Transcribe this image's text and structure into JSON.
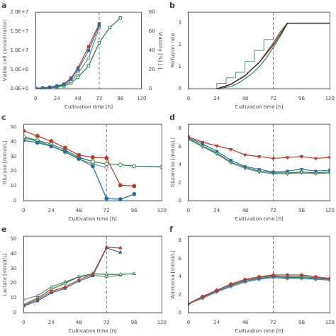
{
  "chart_data": [
    {
      "type": "line",
      "title": "a",
      "xlabel": "Cultivation time [h]",
      "ylabel": "Viable cell concentration",
      "y2label": "Viability [%] [-]",
      "xlim": [
        0,
        120
      ],
      "xticks": [
        0,
        24,
        48,
        72,
        96,
        120
      ],
      "ylim": [
        0,
        20000000.0
      ],
      "yticks": [
        {
          "value": 0,
          "label": "0.0E+0"
        },
        {
          "value": 5000000.0,
          "label": "5.0E+6"
        },
        {
          "value": 10000000.0,
          "label": "1.0E+7"
        },
        {
          "value": 15000000.0,
          "label": "1.5E+7"
        },
        {
          "value": 20000000.0,
          "label": "2.0E+7"
        }
      ],
      "y2lim": [
        0,
        80
      ],
      "y2ticks": [
        0,
        20,
        40,
        60,
        80
      ],
      "grid": false,
      "vline": {
        "x": 72,
        "color": "#777777",
        "line_style": "dashed"
      },
      "x": [
        0,
        8,
        16,
        24,
        32,
        40,
        48,
        60,
        72
      ],
      "series": [
        {
          "color": "#2471a3",
          "marker": "square",
          "values": [
            100000.0,
            200000.0,
            400000.0,
            700000.0,
            1200000.0,
            2500000.0,
            5000000.0,
            10000000.0,
            16500000.0
          ]
        },
        {
          "color": "#c0392b",
          "marker": "square",
          "values": [
            100000.0,
            200000.0,
            400000.0,
            700000.0,
            1200000.0,
            2800000.0,
            5500000.0,
            11000000.0,
            17000000.0
          ]
        },
        {
          "color": "#808080",
          "marker": "square-open",
          "values": [
            100000.0,
            200000.0,
            300000.0,
            600000.0,
            1000000.0,
            2000000.0,
            4000000.0,
            8000000.0,
            16000000.0
          ]
        },
        {
          "color": "#1e8449",
          "marker": "square-open",
          "x": [
            0,
            8,
            16,
            24,
            32,
            40,
            48,
            60,
            72,
            84,
            96
          ],
          "values": [
            100000.0,
            150000.0,
            250000.0,
            400000.0,
            700000.0,
            1500000.0,
            3000000.0,
            6000000.0,
            12000000.0,
            16000000.0,
            18500000.0
          ]
        }
      ]
    },
    {
      "type": "line",
      "title": "b",
      "xlabel": "Cultivation time [h]",
      "ylabel": "Perfusion rate",
      "xlim": [
        0,
        120
      ],
      "xticks": [
        0,
        24,
        48,
        72,
        96,
        120
      ],
      "ylim": [
        0,
        3.5
      ],
      "yticks": [
        0,
        1,
        2,
        3
      ],
      "grid": false,
      "vline": {
        "x": 72,
        "color": "#777777",
        "line_style": "dashed"
      },
      "x": [
        24,
        30,
        36,
        42,
        48,
        54,
        60,
        66,
        72,
        78,
        84,
        96,
        108,
        120
      ],
      "series": [
        {
          "color": "#222222",
          "values": [
            0.0,
            0.1,
            0.2,
            0.4,
            0.6,
            0.9,
            1.2,
            1.6,
            2.0,
            2.5,
            3.0,
            3.0,
            3.0,
            3.0
          ]
        },
        {
          "color": "#c0392b",
          "values": [
            0.0,
            0.1,
            0.2,
            0.4,
            0.6,
            0.9,
            1.2,
            1.65,
            2.1,
            2.6,
            3.0,
            3.0,
            3.0,
            3.0
          ]
        },
        {
          "color": "#1e8449",
          "values": [
            0.0,
            0.05,
            0.1,
            0.25,
            0.45,
            0.7,
            1.0,
            1.4,
            1.9,
            2.4,
            3.0,
            3.0,
            3.0,
            3.0
          ]
        },
        {
          "color": "#1e8449",
          "line_style": "step",
          "x": [
            24,
            32,
            40,
            48,
            56,
            64,
            72
          ],
          "values": [
            0.0,
            0.25,
            0.5,
            0.75,
            1.25,
            1.75,
            2.25
          ]
        }
      ]
    },
    {
      "type": "line",
      "title": "c",
      "xlabel": "Cultivation time [h]",
      "ylabel": "Glucose [mmol/L]",
      "xlim": [
        0,
        120
      ],
      "xticks": [
        0,
        24,
        48,
        72,
        96,
        120
      ],
      "ylim": [
        0,
        52
      ],
      "yticks": [
        0,
        10,
        20,
        30,
        40,
        50
      ],
      "grid": false,
      "vline": {
        "x": 72,
        "color": "#777777",
        "line_style": "dashed"
      },
      "x": [
        0,
        12,
        24,
        36,
        48,
        60,
        72,
        84,
        96,
        120
      ],
      "series": [
        {
          "color": "#c0392b",
          "marker": "circle",
          "values": [
            47.5,
            44.0,
            40.5,
            36.0,
            31.0,
            29.5,
            29.0,
            10.5,
            10.0,
            null
          ]
        },
        {
          "color": "#2471a3",
          "marker": "circle",
          "values": [
            41.0,
            39.5,
            37.0,
            33.5,
            28.5,
            23.5,
            1.5,
            1.0,
            4.5,
            null
          ]
        },
        {
          "color": "#1e8449",
          "marker": "circle-open",
          "values": [
            43.5,
            41.0,
            38.5,
            34.5,
            29.5,
            26.5,
            25.0,
            24.5,
            23.5,
            23.0
          ]
        },
        {
          "color": "#808080",
          "marker": "circle-open",
          "values": [
            42.5,
            40.5,
            37.5,
            33.0,
            28.5,
            25.0,
            22.5,
            null,
            null,
            null
          ]
        }
      ]
    },
    {
      "type": "line",
      "title": "d",
      "xlabel": "Cultivation time [h]",
      "ylabel": "Glutamine [mmol/L]",
      "xlim": [
        0,
        120
      ],
      "xticks": [
        0,
        24,
        48,
        72,
        96,
        120
      ],
      "ylim": [
        0,
        8.5
      ],
      "yticks": [
        0,
        2,
        4,
        6,
        8
      ],
      "grid": false,
      "vline": {
        "x": 72,
        "color": "#777777",
        "line_style": "dashed"
      },
      "x": [
        0,
        12,
        24,
        36,
        48,
        60,
        72,
        84,
        96,
        108,
        120
      ],
      "series": [
        {
          "color": "#c0392b",
          "marker": "triangle-down",
          "values": [
            7.1,
            6.5,
            6.1,
            5.7,
            5.1,
            4.9,
            4.7,
            4.8,
            4.9,
            4.7,
            4.8
          ]
        },
        {
          "color": "#2471a3",
          "marker": "triangle-down",
          "values": [
            7.0,
            6.3,
            5.5,
            4.5,
            3.8,
            3.5,
            3.2,
            3.3,
            3.5,
            3.3,
            3.4
          ]
        },
        {
          "color": "#1e8449",
          "marker": "triangle-down-open",
          "values": [
            6.9,
            6.1,
            5.3,
            4.3,
            3.7,
            3.3,
            3.1,
            3.1,
            3.2,
            3.1,
            3.2
          ]
        },
        {
          "color": "#808080",
          "marker": "triangle-down-open",
          "values": [
            6.8,
            6.0,
            5.2,
            4.2,
            3.6,
            3.2,
            3.0,
            3.0,
            3.1,
            3.0,
            3.1
          ]
        }
      ]
    },
    {
      "type": "line",
      "title": "e",
      "xlabel": "Cultivation time [h]",
      "ylabel": "Lactate [mmol/L]",
      "xlim": [
        0,
        120
      ],
      "xticks": [
        0,
        24,
        48,
        72,
        96,
        120
      ],
      "ylim": [
        0,
        52
      ],
      "yticks": [
        0,
        10,
        20,
        30,
        40,
        50
      ],
      "grid": false,
      "vline": {
        "x": 72,
        "color": "#777777",
        "line_style": "dashed"
      },
      "x": [
        0,
        12,
        24,
        36,
        48,
        60,
        72,
        84,
        96
      ],
      "series": [
        {
          "color": "#c0392b",
          "marker": "triangle-up",
          "values": [
            5.0,
            9.0,
            14.5,
            17.5,
            22.5,
            26.0,
            44.5,
            44.0,
            null
          ]
        },
        {
          "color": "#2471a3",
          "marker": "triangle-up",
          "values": [
            4.5,
            8.0,
            13.5,
            16.5,
            21.5,
            25.0,
            44.0,
            41.0,
            null
          ]
        },
        {
          "color": "#1e8449",
          "marker": "triangle-up-open",
          "values": [
            5.5,
            10.0,
            16.0,
            20.0,
            24.5,
            26.5,
            26.0,
            26.0,
            26.5
          ]
        },
        {
          "color": "#808080",
          "marker": "triangle-up-open",
          "values": [
            9.0,
            11.5,
            17.5,
            21.0,
            24.5,
            25.5,
            24.5,
            25.5,
            null
          ]
        }
      ]
    },
    {
      "type": "line",
      "title": "f",
      "xlabel": "Cultivation time [h]",
      "ylabel": "Ammonia [mmol/L]",
      "xlim": [
        0,
        120
      ],
      "xticks": [
        0,
        24,
        48,
        72,
        96,
        120
      ],
      "ylim": [
        0,
        8.5
      ],
      "yticks": [
        0,
        2,
        4,
        6,
        8
      ],
      "grid": false,
      "vline": {
        "x": 72,
        "color": "#777777",
        "line_style": "dashed"
      },
      "x": [
        0,
        12,
        24,
        36,
        48,
        60,
        72,
        84,
        96,
        108,
        120
      ],
      "series": [
        {
          "color": "#c0392b",
          "marker": "diamond",
          "values": [
            1.0,
            1.8,
            2.5,
            3.2,
            3.7,
            4.0,
            4.2,
            4.2,
            4.2,
            4.0,
            3.8
          ]
        },
        {
          "color": "#2471a3",
          "marker": "diamond",
          "values": [
            1.0,
            1.7,
            2.4,
            3.0,
            3.5,
            3.8,
            4.0,
            3.9,
            3.9,
            3.8,
            3.7
          ]
        },
        {
          "color": "#1e8449",
          "marker": "diamond-open",
          "values": [
            1.0,
            1.8,
            2.5,
            3.1,
            3.6,
            3.9,
            4.1,
            4.0,
            4.0,
            3.9,
            3.8
          ]
        },
        {
          "color": "#808080",
          "marker": "diamond-open",
          "values": [
            1.0,
            1.6,
            2.3,
            2.9,
            3.4,
            3.7,
            3.9,
            3.8,
            3.8,
            3.7,
            3.6
          ]
        }
      ]
    }
  ]
}
